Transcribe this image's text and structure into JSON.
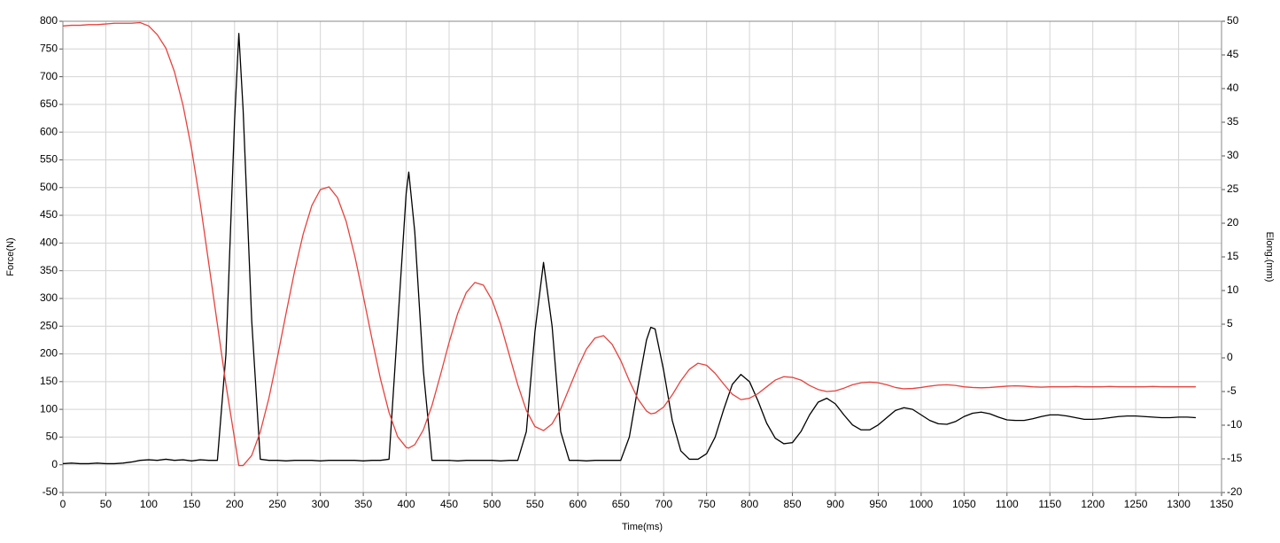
{
  "chart_data": {
    "type": "line",
    "xlabel": "Time(ms)",
    "ylabel": "Force(N)",
    "y2label": "Elong.(mm)",
    "x": [
      0,
      10,
      20,
      30,
      40,
      50,
      60,
      70,
      80,
      90,
      100,
      110,
      120,
      130,
      140,
      150,
      160,
      170,
      180,
      190,
      200,
      205,
      210,
      220,
      230,
      240,
      250,
      260,
      270,
      280,
      290,
      300,
      310,
      320,
      330,
      340,
      350,
      360,
      370,
      380,
      390,
      400,
      403,
      410,
      420,
      430,
      440,
      450,
      460,
      470,
      480,
      490,
      500,
      510,
      520,
      530,
      540,
      550,
      560,
      570,
      580,
      590,
      600,
      610,
      620,
      630,
      640,
      650,
      660,
      670,
      680,
      685,
      690,
      700,
      710,
      720,
      730,
      740,
      750,
      760,
      770,
      780,
      790,
      800,
      810,
      820,
      830,
      840,
      850,
      860,
      870,
      880,
      890,
      900,
      910,
      920,
      930,
      940,
      950,
      960,
      970,
      980,
      990,
      1000,
      1010,
      1020,
      1030,
      1040,
      1050,
      1060,
      1070,
      1080,
      1090,
      1100,
      1110,
      1120,
      1130,
      1140,
      1150,
      1160,
      1170,
      1180,
      1190,
      1200,
      1210,
      1220,
      1230,
      1240,
      1250,
      1260,
      1270,
      1280,
      1290,
      1300,
      1310,
      1320
    ],
    "series": [
      {
        "color": "#000000",
        "axis": "y",
        "values": [
          2,
          3,
          2,
          2,
          3,
          2,
          2,
          3,
          5,
          8,
          9,
          8,
          10,
          8,
          9,
          7,
          9,
          8,
          8,
          200,
          620,
          778,
          640,
          260,
          10,
          8,
          8,
          7,
          8,
          8,
          8,
          7,
          8,
          8,
          8,
          8,
          7,
          8,
          8,
          10,
          250,
          490,
          528,
          420,
          170,
          8,
          8,
          8,
          7,
          8,
          8,
          8,
          8,
          7,
          8,
          8,
          60,
          240,
          365,
          250,
          60,
          8,
          8,
          7,
          8,
          8,
          8,
          8,
          50,
          140,
          225,
          248,
          245,
          170,
          80,
          25,
          10,
          10,
          20,
          50,
          100,
          145,
          163,
          150,
          115,
          75,
          48,
          38,
          40,
          60,
          90,
          113,
          120,
          110,
          90,
          72,
          63,
          63,
          72,
          85,
          98,
          103,
          100,
          90,
          80,
          74,
          73,
          78,
          87,
          93,
          95,
          92,
          86,
          81,
          80,
          80,
          83,
          87,
          90,
          90,
          88,
          85,
          82,
          82,
          83,
          85,
          87,
          88,
          88,
          87,
          86,
          85,
          85,
          86,
          86,
          85
        ]
      },
      {
        "color": "#e8413c",
        "axis": "y2",
        "values": [
          49.3,
          49.4,
          49.4,
          49.5,
          49.5,
          49.6,
          49.7,
          49.7,
          49.7,
          49.8,
          49.3,
          48,
          46,
          42.5,
          37.5,
          31,
          23,
          14,
          5,
          -4,
          -12,
          -16,
          -16,
          -14.5,
          -11,
          -6,
          0.1,
          6.6,
          12.9,
          18.4,
          22.6,
          25,
          25.4,
          23.8,
          20.3,
          15.2,
          9.2,
          2.9,
          -3.1,
          -8.1,
          -11.7,
          -13.3,
          -13.4,
          -12.9,
          -10.7,
          -7.1,
          -2.5,
          2.3,
          6.6,
          9.7,
          11.2,
          10.8,
          8.6,
          5,
          0.5,
          -4,
          -7.8,
          -10.2,
          -10.8,
          -9.8,
          -7.6,
          -4.5,
          -1.4,
          1.3,
          2.95,
          3.3,
          2,
          -0.4,
          -3.4,
          -6.1,
          -7.9,
          -8.3,
          -8.2,
          -7.3,
          -5.5,
          -3.4,
          -1.7,
          -0.8,
          -1.1,
          -2.3,
          -3.9,
          -5.4,
          -6.2,
          -6,
          -5.3,
          -4.3,
          -3.3,
          -2.8,
          -2.9,
          -3.3,
          -4.1,
          -4.7,
          -5,
          -4.9,
          -4.5,
          -4,
          -3.7,
          -3.6,
          -3.7,
          -4,
          -4.4,
          -4.6,
          -4.55,
          -4.4,
          -4.2,
          -4.05,
          -4,
          -4.1,
          -4.3,
          -4.4,
          -4.45,
          -4.4,
          -4.3,
          -4.2,
          -4.15,
          -4.2,
          -4.3,
          -4.35,
          -4.3,
          -4.3,
          -4.3,
          -4.25,
          -4.3,
          -4.3,
          -4.3,
          -4.25,
          -4.3,
          -4.3,
          -4.3,
          -4.3,
          -4.25,
          -4.3,
          -4.3,
          -4.3,
          -4.3,
          -4.3
        ]
      }
    ],
    "xlim": [
      0,
      1350
    ],
    "xticks": [
      0,
      50,
      100,
      150,
      200,
      250,
      300,
      350,
      400,
      450,
      500,
      550,
      600,
      650,
      700,
      750,
      800,
      850,
      900,
      950,
      1000,
      1050,
      1100,
      1150,
      1200,
      1250,
      1300,
      1350
    ],
    "ylim": [
      -50,
      800
    ],
    "yticks": [
      -50,
      0,
      50,
      100,
      150,
      200,
      250,
      300,
      350,
      400,
      450,
      500,
      550,
      600,
      650,
      700,
      750,
      800
    ],
    "y2lim": [
      -20,
      50
    ],
    "y2ticks": [
      -20,
      -15,
      -10,
      -5,
      0,
      5,
      10,
      15,
      20,
      25,
      30,
      35,
      40,
      45,
      50
    ],
    "grid": true
  }
}
